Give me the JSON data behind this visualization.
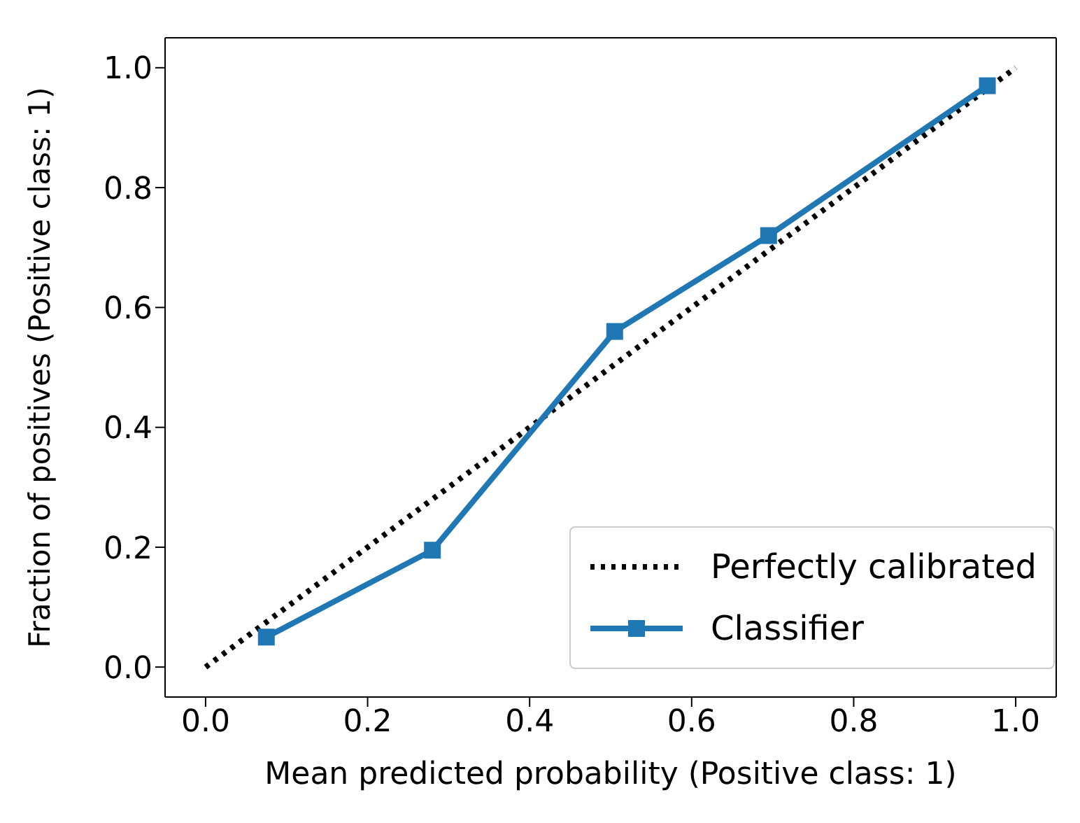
{
  "chart_data": {
    "type": "line",
    "xlabel": "Mean predicted probability (Positive class: 1)",
    "ylabel": "Fraction of positives (Positive class: 1)",
    "xlim": [
      -0.05,
      1.05
    ],
    "ylim": [
      -0.05,
      1.05
    ],
    "xticks": [
      {
        "value": 0,
        "label": "0.0"
      },
      {
        "value": 0.2,
        "label": "0.2"
      },
      {
        "value": 0.4,
        "label": "0.4"
      },
      {
        "value": 0.6,
        "label": "0.6"
      },
      {
        "value": 0.8,
        "label": "0.8"
      },
      {
        "value": 1,
        "label": "1.0"
      }
    ],
    "yticks": [
      {
        "value": 0,
        "label": "0.0"
      },
      {
        "value": 0.2,
        "label": "0.2"
      },
      {
        "value": 0.4,
        "label": "0.4"
      },
      {
        "value": 0.6,
        "label": "0.6"
      },
      {
        "value": 0.8,
        "label": "0.8"
      },
      {
        "value": 1,
        "label": "1.0"
      }
    ],
    "legend": "bottom right",
    "series": [
      {
        "name": "Perfectly calibrated",
        "color": "#000000",
        "x": [
          0,
          1
        ],
        "values": [
          0,
          1
        ],
        "line_style": "dotted",
        "marker": "none"
      },
      {
        "name": "Classifier",
        "color": "#1f77b4",
        "x": [
          0.075,
          0.28,
          0.505,
          0.695,
          0.965
        ],
        "values": [
          0.05,
          0.195,
          0.56,
          0.72,
          0.97
        ],
        "line_style": "solid",
        "marker": "square"
      }
    ]
  }
}
